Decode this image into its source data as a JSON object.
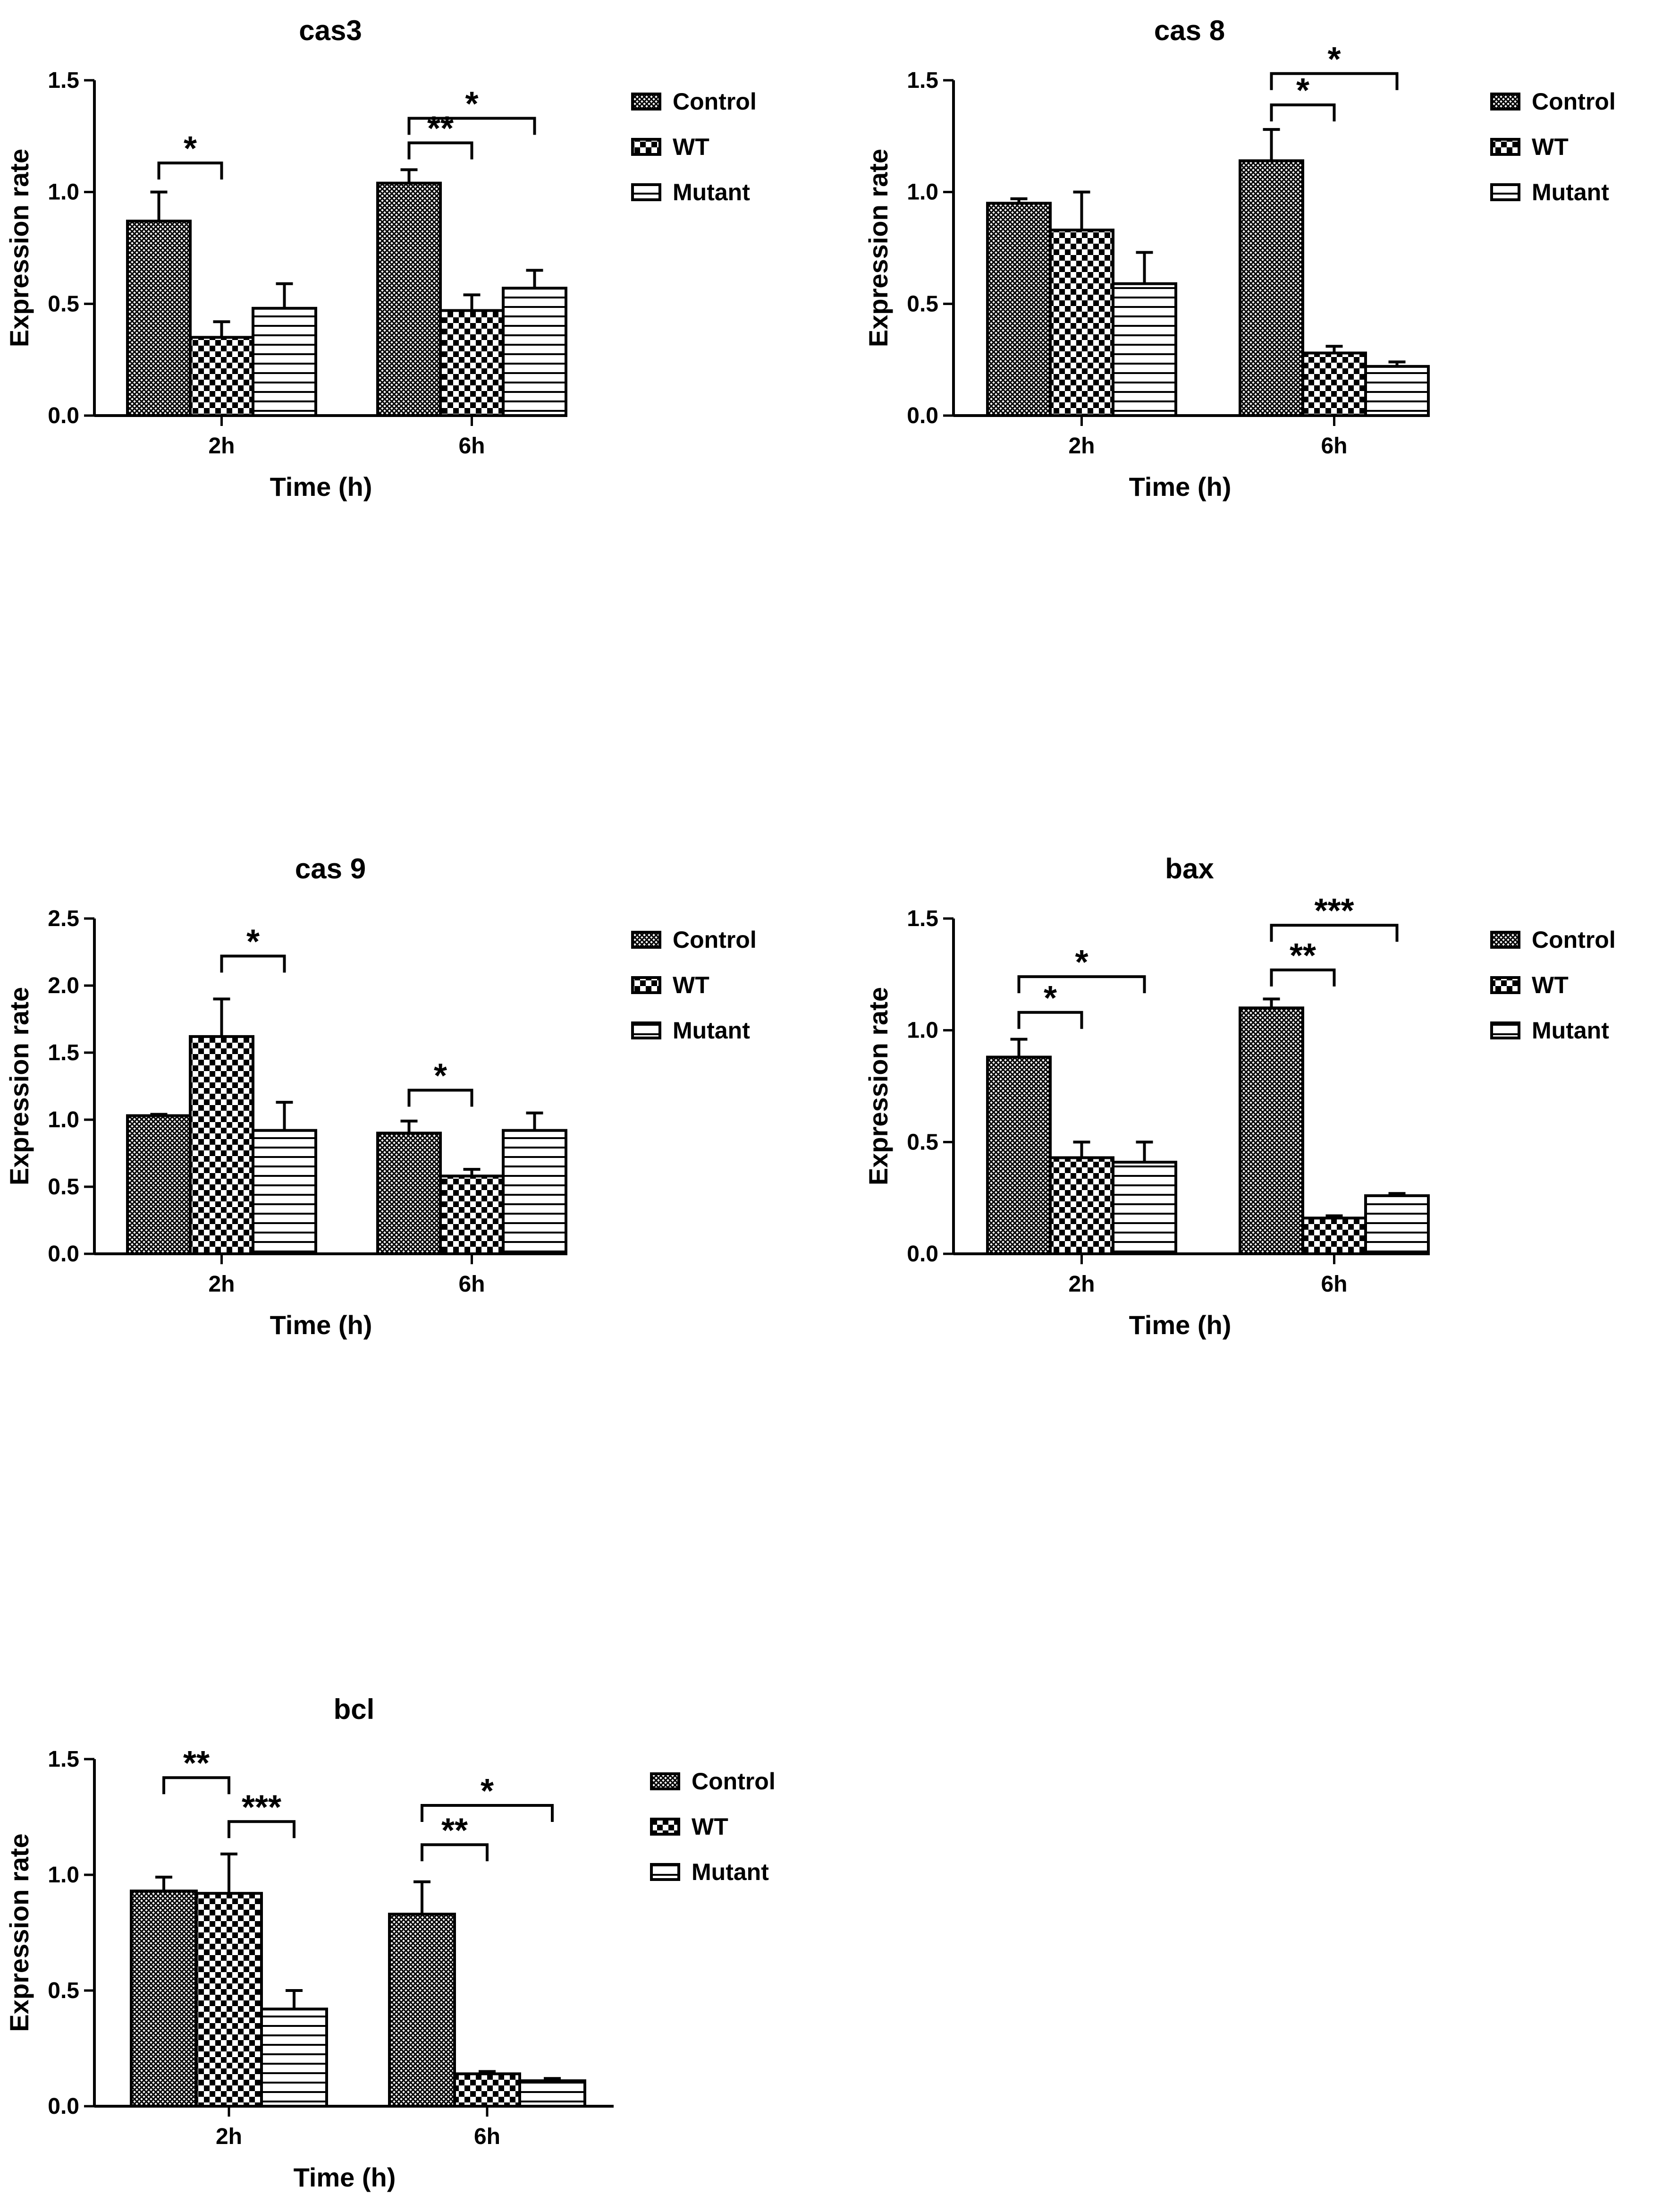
{
  "legend_labels": [
    "Control",
    "WT",
    "Mutant"
  ],
  "pattern_names": [
    "crosshatch-fine",
    "checkerboard",
    "horizontal-lines"
  ],
  "chart_data": [
    {
      "type": "bar",
      "title": "cas3",
      "xlabel": "Time (h)",
      "ylabel": "Expression rate",
      "categories": [
        "2h",
        "6h"
      ],
      "ylim": [
        0,
        1.5
      ],
      "yticks": [
        "0.0",
        "0.5",
        "1.0",
        "1.5"
      ],
      "series": [
        {
          "name": "Control",
          "values": [
            0.87,
            1.04
          ],
          "errors": [
            0.13,
            0.06
          ]
        },
        {
          "name": "WT",
          "values": [
            0.35,
            0.47
          ],
          "errors": [
            0.07,
            0.07
          ]
        },
        {
          "name": "Mutant",
          "values": [
            0.48,
            0.57
          ],
          "errors": [
            0.11,
            0.08
          ]
        }
      ],
      "significance": [
        {
          "category": 0,
          "from": 0,
          "to": 1,
          "label": "*",
          "level": 1.13
        },
        {
          "category": 1,
          "from": 0,
          "to": 1,
          "label": "**",
          "level": 1.22
        },
        {
          "category": 1,
          "from": 0,
          "to": 2,
          "label": "*",
          "level": 1.33
        }
      ]
    },
    {
      "type": "bar",
      "title": "cas 8",
      "xlabel": "Time (h)",
      "ylabel": "Expression rate",
      "categories": [
        "2h",
        "6h"
      ],
      "ylim": [
        0,
        1.5
      ],
      "yticks": [
        "0.0",
        "0.5",
        "1.0",
        "1.5"
      ],
      "series": [
        {
          "name": "Control",
          "values": [
            0.95,
            1.14
          ],
          "errors": [
            0.02,
            0.14
          ]
        },
        {
          "name": "WT",
          "values": [
            0.83,
            0.28
          ],
          "errors": [
            0.17,
            0.03
          ]
        },
        {
          "name": "Mutant",
          "values": [
            0.59,
            0.22
          ],
          "errors": [
            0.14,
            0.02
          ]
        }
      ],
      "significance": [
        {
          "category": 1,
          "from": 0,
          "to": 1,
          "label": "*",
          "level": 1.39
        },
        {
          "category": 1,
          "from": 0,
          "to": 2,
          "label": "*",
          "level": 1.53
        }
      ]
    },
    {
      "type": "bar",
      "title": "cas 9",
      "xlabel": "Time (h)",
      "ylabel": "Expression rate",
      "categories": [
        "2h",
        "6h"
      ],
      "ylim": [
        0,
        2.5
      ],
      "yticks": [
        "0.0",
        "0.5",
        "1.0",
        "1.5",
        "2.0",
        "2.5"
      ],
      "series": [
        {
          "name": "Control",
          "values": [
            1.03,
            0.9
          ],
          "errors": [
            0.01,
            0.09
          ]
        },
        {
          "name": "WT",
          "values": [
            1.62,
            0.58
          ],
          "errors": [
            0.28,
            0.05
          ]
        },
        {
          "name": "Mutant",
          "values": [
            0.92,
            0.92
          ],
          "errors": [
            0.21,
            0.13
          ]
        }
      ],
      "significance": [
        {
          "category": 0,
          "from": 1,
          "to": 2,
          "label": "*",
          "level": 2.22
        },
        {
          "category": 1,
          "from": 0,
          "to": 1,
          "label": "*",
          "level": 1.22
        }
      ]
    },
    {
      "type": "bar",
      "title": "bax",
      "xlabel": "Time (h)",
      "ylabel": "Expression rate",
      "categories": [
        "2h",
        "6h"
      ],
      "ylim": [
        0,
        1.5
      ],
      "yticks": [
        "0.0",
        "0.5",
        "1.0",
        "1.5"
      ],
      "series": [
        {
          "name": "Control",
          "values": [
            0.88,
            1.1
          ],
          "errors": [
            0.08,
            0.04
          ]
        },
        {
          "name": "WT",
          "values": [
            0.43,
            0.16
          ],
          "errors": [
            0.07,
            0.01
          ]
        },
        {
          "name": "Mutant",
          "values": [
            0.41,
            0.26
          ],
          "errors": [
            0.09,
            0.01
          ]
        }
      ],
      "significance": [
        {
          "category": 0,
          "from": 0,
          "to": 1,
          "label": "*",
          "level": 1.08
        },
        {
          "category": 0,
          "from": 0,
          "to": 2,
          "label": "*",
          "level": 1.24
        },
        {
          "category": 1,
          "from": 0,
          "to": 1,
          "label": "**",
          "level": 1.27
        },
        {
          "category": 1,
          "from": 0,
          "to": 2,
          "label": "***",
          "level": 1.47
        }
      ]
    },
    {
      "type": "bar",
      "title": "bcl",
      "xlabel": "Time (h)",
      "ylabel": "Expression rate",
      "categories": [
        "2h",
        "6h"
      ],
      "ylim": [
        0,
        1.5
      ],
      "yticks": [
        "0.0",
        "0.5",
        "1.0",
        "1.5"
      ],
      "series": [
        {
          "name": "Control",
          "values": [
            0.93,
            0.83
          ],
          "errors": [
            0.06,
            0.14
          ]
        },
        {
          "name": "WT",
          "values": [
            0.92,
            0.14
          ],
          "errors": [
            0.17,
            0.01
          ]
        },
        {
          "name": "Mutant",
          "values": [
            0.42,
            0.11
          ],
          "errors": [
            0.08,
            0.01
          ]
        }
      ],
      "significance": [
        {
          "category": 0,
          "from": 0,
          "to": 1,
          "label": "**",
          "level": 1.42
        },
        {
          "category": 0,
          "from": 1,
          "to": 2,
          "label": "***",
          "level": 1.23
        },
        {
          "category": 1,
          "from": 0,
          "to": 1,
          "label": "**",
          "level": 1.13
        },
        {
          "category": 1,
          "from": 0,
          "to": 2,
          "label": "*",
          "level": 1.3
        }
      ]
    }
  ]
}
